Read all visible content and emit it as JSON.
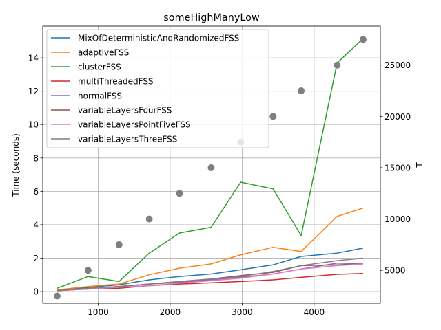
{
  "chart_data": {
    "type": "line",
    "title": "someHighManyLow",
    "xlabel": "",
    "ylabel": "Time (seconds)",
    "y2label": "T",
    "x": [
      430,
      860,
      1290,
      1710,
      2130,
      2570,
      2980,
      3430,
      3820,
      4320,
      4680
    ],
    "xlim": [
      230,
      4920
    ],
    "ylim": [
      -0.7,
      15.9
    ],
    "y2lim": [
      1800,
      28800
    ],
    "xticks": [
      1000,
      2000,
      3000,
      4000
    ],
    "yticks": [
      0,
      2,
      4,
      6,
      8,
      10,
      12,
      14
    ],
    "y2ticks": [
      5000,
      10000,
      15000,
      20000,
      25000
    ],
    "grid": true,
    "legend": "top-left",
    "series": [
      {
        "name": "MixOfDeterministicAndRandomizedFSS",
        "color": "#1f77b4",
        "values": [
          0.05,
          0.25,
          0.4,
          0.7,
          0.9,
          1.05,
          1.3,
          1.6,
          2.1,
          2.3,
          2.6
        ]
      },
      {
        "name": "adaptiveFSS",
        "color": "#ff7f0e",
        "values": [
          0.1,
          0.3,
          0.45,
          1.0,
          1.4,
          1.65,
          2.2,
          2.65,
          2.4,
          4.5,
          5.0
        ]
      },
      {
        "name": "clusterFSS",
        "color": "#2ca02c",
        "values": [
          0.2,
          0.9,
          0.6,
          2.3,
          3.5,
          3.85,
          6.55,
          6.15,
          3.35,
          13.7,
          15.15
        ]
      },
      {
        "name": "multiThreadedFSS",
        "color": "#d62728",
        "values": [
          0.05,
          0.15,
          0.2,
          0.35,
          0.45,
          0.52,
          0.6,
          0.7,
          0.85,
          1.03,
          1.08
        ]
      },
      {
        "name": "normalFSS",
        "color": "#9467bd",
        "values": [
          0.05,
          0.15,
          0.3,
          0.45,
          0.55,
          0.7,
          0.85,
          1.05,
          1.35,
          1.7,
          1.65
        ]
      },
      {
        "name": "variableLayersFourFSS",
        "color": "#8c564b",
        "values": [
          0.05,
          0.2,
          0.3,
          0.45,
          0.6,
          0.75,
          0.95,
          1.15,
          1.55,
          1.6,
          1.65
        ]
      },
      {
        "name": "variableLayersPointFiveFSS",
        "color": "#e377c2",
        "values": [
          0.05,
          0.15,
          0.25,
          0.35,
          0.5,
          0.65,
          0.8,
          1.05,
          1.35,
          1.55,
          1.65
        ]
      },
      {
        "name": "variableLayersThreeFSS",
        "color": "#7f7f7f",
        "values": [
          0.05,
          0.2,
          0.3,
          0.45,
          0.6,
          0.75,
          0.9,
          1.2,
          1.55,
          1.85,
          2.0
        ]
      }
    ],
    "secondary_series": {
      "type": "scatter",
      "axis": "right",
      "color": "#7f7f7f",
      "values": [
        2500,
        5000,
        7500,
        10000,
        12500,
        15000,
        17500,
        20000,
        22500,
        25000,
        27500
      ]
    }
  }
}
